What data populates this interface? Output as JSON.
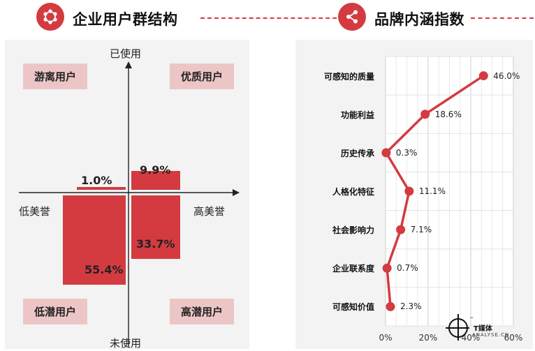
{
  "left_section": {
    "title": "企业用户群结构",
    "icon": "molecule-icon",
    "accent": "#d33b41",
    "axes": {
      "top": "已使用",
      "bottom": "未使用",
      "left": "低美誉",
      "right": "高美誉"
    },
    "quadrants": {
      "top_left": "游离用户",
      "top_right": "优质用户",
      "bottom_left": "低潜用户",
      "bottom_right": "高潜用户"
    },
    "values": {
      "top_left": "1.0%",
      "top_right": "9.9%",
      "bottom_left": "55.4%",
      "bottom_right": "33.7%"
    }
  },
  "right_section": {
    "title": "品牌内涵指数",
    "icon": "share-icon"
  },
  "chart_data": [
    {
      "type": "bar",
      "title": "",
      "categories": [
        "游离用户",
        "优质用户",
        "低潜用户",
        "高潜用户"
      ],
      "values": [
        1.0,
        9.9,
        55.4,
        33.7
      ],
      "labels": [
        "1.0%",
        "9.9%",
        "55.4%",
        "33.7%"
      ],
      "xlabel": "",
      "ylabel": "",
      "unit": "%"
    },
    {
      "type": "line",
      "title": "",
      "categories": [
        "可感知的质量",
        "功能利益",
        "历史传承",
        "人格化特征",
        "社会影响力",
        "企业联系度",
        "可感知价值"
      ],
      "values": [
        46.0,
        18.6,
        0.3,
        11.1,
        7.1,
        0.7,
        2.3
      ],
      "labels": [
        "46.0%",
        "18.6%",
        "0.3%",
        "11.1%",
        "7.1%",
        "0.7%",
        "2.3%"
      ],
      "x_ticks": [
        "0%",
        "20%",
        "40%",
        "60%"
      ],
      "xlim": [
        0,
        60
      ],
      "grid": true,
      "orientation": "horizontal",
      "color": "#d33b41"
    }
  ],
  "watermark": {
    "name": "T媒体",
    "tagline": "ANALYSE.CN",
    "mark": "™"
  }
}
